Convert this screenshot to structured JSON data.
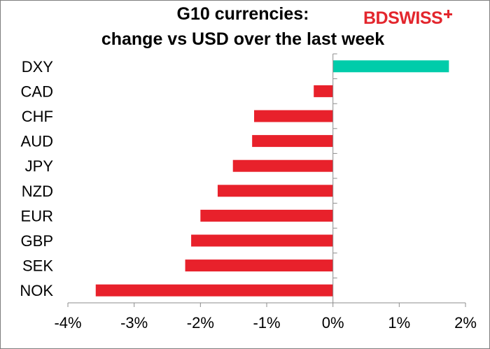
{
  "chart_data": {
    "type": "bar",
    "orientation": "horizontal",
    "title": "G10 currencies:",
    "subtitle": "change vs USD over the last week",
    "categories": [
      "DXY",
      "CAD",
      "CHF",
      "AUD",
      "JPY",
      "NZD",
      "EUR",
      "GBP",
      "SEK",
      "NOK"
    ],
    "values": [
      1.75,
      -0.29,
      -1.19,
      -1.22,
      -1.51,
      -1.74,
      -2.0,
      -2.14,
      -2.23,
      -3.58
    ],
    "xlim": [
      -4,
      2
    ],
    "xticks": [
      -4,
      -3,
      -2,
      -1,
      0,
      1,
      2
    ],
    "xtick_labels": [
      "-4%",
      "-3%",
      "-2%",
      "-1%",
      "0%",
      "1%",
      "2%"
    ],
    "xlabel": "",
    "ylabel": "",
    "grid": false,
    "colors": {
      "positive": "#00ccaa",
      "negative": "#e8212b"
    }
  },
  "logo": {
    "text_bd": "BD",
    "text_swiss": "SWISS",
    "color": "#e3262d"
  }
}
